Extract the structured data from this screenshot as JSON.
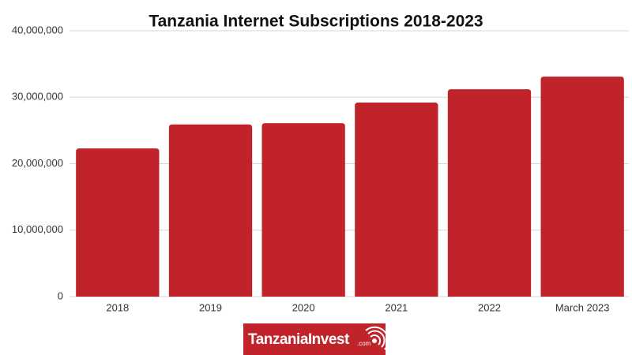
{
  "chart_data": {
    "type": "bar",
    "title": "Tanzania Internet Subscriptions 2018-2023",
    "categories": [
      "2018",
      "2019",
      "2020",
      "2021",
      "2022",
      "March 2023"
    ],
    "values": [
      22300000,
      25900000,
      26100000,
      29200000,
      31200000,
      33100000
    ],
    "color": "#c1232a",
    "ylim": [
      0,
      40000000
    ],
    "yticks": [
      0,
      {
        "value": 10000000,
        "label": "10,000,000"
      },
      {
        "value": 20000000,
        "label": "20,000,000"
      },
      {
        "value": 30000000,
        "label": "30,000,000"
      },
      {
        "value": 40000000,
        "label": "40,000,000"
      }
    ],
    "grid": true
  },
  "logo": {
    "text": "TanzaniaInvest",
    "suffix": ".com"
  }
}
